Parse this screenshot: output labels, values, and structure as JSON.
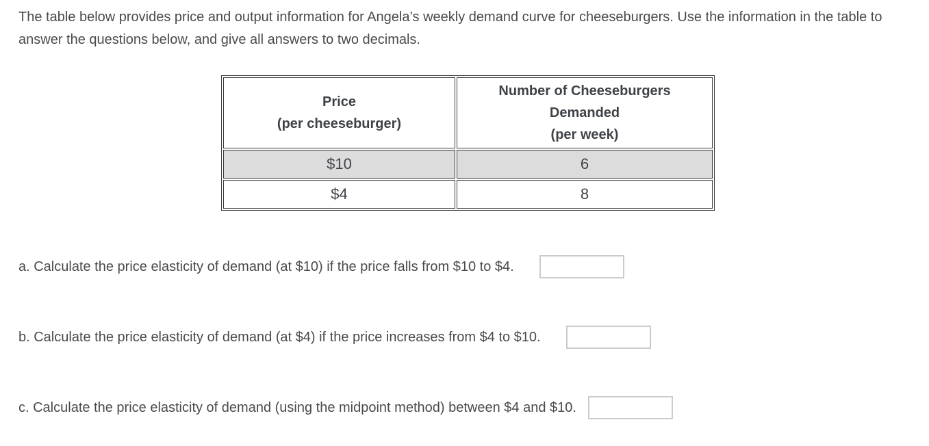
{
  "intro": {
    "text": "The table below provides price and output information for Angela’s weekly demand curve for cheeseburgers. Use the information in the table to answer the questions below, and give all answers to two decimals."
  },
  "table": {
    "price_header": [
      "Price",
      "(per cheeseburger)"
    ],
    "quantity_header": [
      "Number of Cheeseburgers",
      "Demanded",
      "(per week)"
    ],
    "rows": [
      {
        "price": "$10",
        "quantity": "6"
      },
      {
        "price": "$4",
        "quantity": "8"
      }
    ]
  },
  "questions": [
    {
      "text": "a. Calculate the price elasticity of demand (at $10) if the price falls from $10 to $4.",
      "answer": ""
    },
    {
      "text": "b. Calculate the price elasticity of demand (at $4) if the price increases from $4 to $10.",
      "answer": ""
    },
    {
      "text": "c. Calculate the price elasticity of demand (using the midpoint method) between $4 and $10.",
      "answer": ""
    }
  ],
  "colors": {
    "body_text": "#4a4a4a",
    "table_text": "#3e4247",
    "table_border": "#3a3a3a",
    "shaded_row": "#dcdcdc",
    "input_border": "#cbcbcb"
  }
}
